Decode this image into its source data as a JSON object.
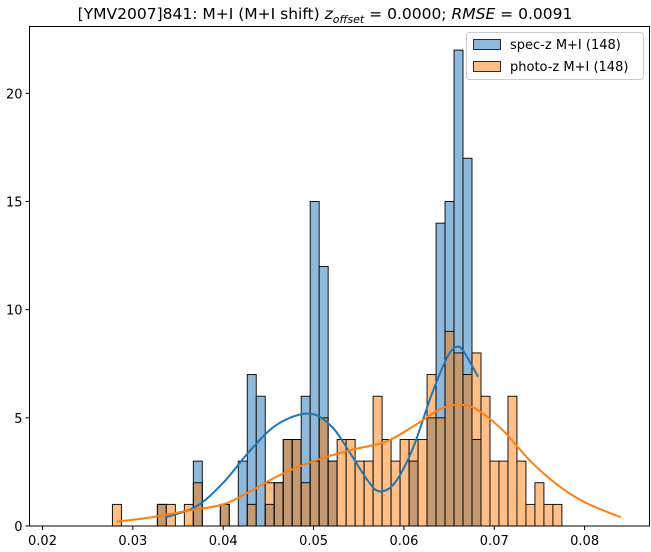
{
  "chart_data": {
    "type": "histogram",
    "title": {
      "prefix": "[YMV2007]841: M+I (M+I shift) ",
      "zoffset_symbol": "z",
      "zoffset_subscript": "offset",
      "zoffset_value": " = 0.0000; ",
      "rmse_symbol": "RMSE",
      "rmse_value": " = 0.0091"
    },
    "xlabel": "",
    "ylabel": "",
    "xlim": [
      0.01856,
      0.08718
    ],
    "ylim": [
      0,
      23.09
    ],
    "xticks": [
      0.02,
      0.03,
      0.04,
      0.05,
      0.06,
      0.07,
      0.08
    ],
    "xtick_labels": [
      "0.02",
      "0.03",
      "0.04",
      "0.05",
      "0.06",
      "0.07",
      "0.08"
    ],
    "yticks": [
      0,
      5,
      10,
      15,
      20
    ],
    "ytick_labels": [
      "0",
      "5",
      "10",
      "15",
      "20"
    ],
    "grid": false,
    "legend_position": "top-right",
    "bins": {
      "start": 0.027735,
      "width": 0.000995,
      "count": 50
    },
    "series": [
      {
        "name": "spec-z M+I (148)",
        "color": "#1f77b4",
        "fill": "#8fb8da",
        "counts": [
          0,
          0,
          0,
          0,
          0,
          1,
          0,
          0,
          0,
          3,
          0,
          0,
          1,
          0,
          3,
          7,
          6,
          1,
          2,
          4,
          4,
          6,
          15,
          12,
          3,
          0,
          0,
          0,
          0,
          0,
          0,
          0,
          0,
          3,
          0,
          5,
          14,
          15,
          22,
          17,
          4,
          0,
          0,
          0,
          0,
          0,
          0,
          0,
          0,
          0
        ],
        "kde": [
          [
            0.0336,
            0.4
          ],
          [
            0.037,
            0.9
          ],
          [
            0.04,
            2.0
          ],
          [
            0.043,
            3.5
          ],
          [
            0.046,
            4.7
          ],
          [
            0.0495,
            5.2
          ],
          [
            0.052,
            4.6
          ],
          [
            0.054,
            3.4
          ],
          [
            0.056,
            2.1
          ],
          [
            0.0573,
            1.6
          ],
          [
            0.059,
            2.0
          ],
          [
            0.061,
            3.6
          ],
          [
            0.063,
            6.0
          ],
          [
            0.0648,
            7.8
          ],
          [
            0.066,
            8.3
          ],
          [
            0.067,
            7.8
          ],
          [
            0.0682,
            6.9
          ]
        ]
      },
      {
        "name": "photo-z M+I (148)",
        "color": "#ff7f0e",
        "fill": "#ffbf86",
        "counts": [
          1,
          0,
          0,
          0,
          0,
          1,
          1,
          0,
          1,
          2,
          0,
          0,
          1,
          0,
          0,
          1,
          0,
          2,
          2,
          4,
          4,
          2,
          3,
          5,
          3,
          4,
          4,
          3,
          3,
          6,
          4,
          3,
          4,
          4,
          4,
          7,
          5,
          9,
          8,
          7,
          8,
          6,
          3,
          3,
          6,
          3,
          1,
          2,
          1,
          1
        ],
        "kde": [
          [
            0.0282,
            0.2
          ],
          [
            0.032,
            0.4
          ],
          [
            0.036,
            0.7
          ],
          [
            0.04,
            1.0
          ],
          [
            0.043,
            1.6
          ],
          [
            0.046,
            2.3
          ],
          [
            0.05,
            3.0
          ],
          [
            0.054,
            3.5
          ],
          [
            0.058,
            3.9
          ],
          [
            0.061,
            4.6
          ],
          [
            0.064,
            5.4
          ],
          [
            0.066,
            5.6
          ],
          [
            0.068,
            5.4
          ],
          [
            0.071,
            4.4
          ],
          [
            0.074,
            3.0
          ],
          [
            0.077,
            1.9
          ],
          [
            0.08,
            1.1
          ],
          [
            0.084,
            0.4
          ]
        ]
      }
    ],
    "overlap_fill": "#c49a72"
  }
}
